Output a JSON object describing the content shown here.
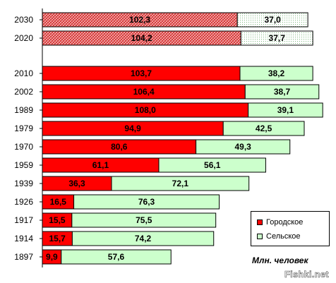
{
  "chart_data": {
    "type": "bar",
    "orientation": "horizontal",
    "stacked": true,
    "title": "",
    "xlabel": "",
    "ylabel": "",
    "units_note": "Млн. человек",
    "categories": [
      "2030",
      "2020",
      "2010",
      "2002",
      "1989",
      "1979",
      "1970",
      "1959",
      "1939",
      "1926",
      "1917",
      "1914",
      "1897"
    ],
    "series": [
      {
        "name": "Городское",
        "color": "#ff0000",
        "values": [
          102.3,
          104.2,
          103.7,
          106.4,
          108.0,
          94.9,
          80.6,
          61.1,
          36.3,
          16.5,
          15.5,
          15.7,
          9.9
        ],
        "labels": [
          "102,3",
          "104,2",
          "103,7",
          "106,4",
          "108,0",
          "94,9",
          "80,6",
          "61,1",
          "36,3",
          "16,5",
          "15,5",
          "15,7",
          "9,9"
        ]
      },
      {
        "name": "Сельское",
        "color": "#ccffcc",
        "values": [
          37.0,
          37.7,
          38.2,
          38.7,
          39.1,
          42.5,
          49.3,
          56.1,
          72.1,
          76.3,
          75.5,
          74.2,
          57.6
        ],
        "labels": [
          "37,0",
          "37,7",
          "38,2",
          "38,7",
          "39,1",
          "42,5",
          "49,3",
          "56,1",
          "72,1",
          "76,3",
          "75,5",
          "74,2",
          "57,6"
        ]
      }
    ],
    "forecast_categories": [
      "2030",
      "2020"
    ],
    "grid": false,
    "legend_position": "bottom-right"
  },
  "watermark": "Fishki.net"
}
